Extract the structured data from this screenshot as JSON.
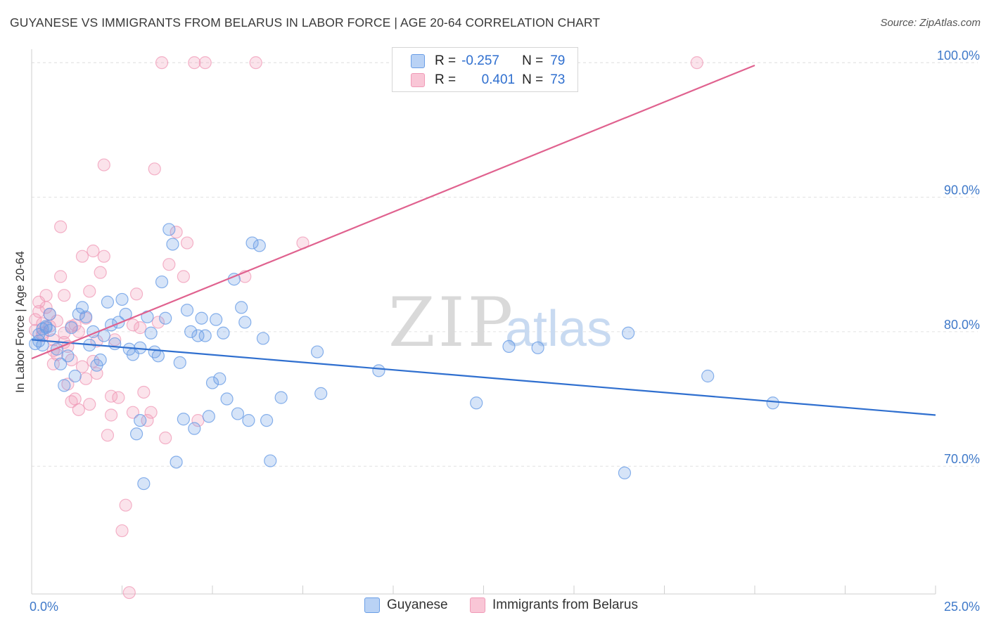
{
  "header": {
    "title": "GUYANESE VS IMMIGRANTS FROM BELARUS IN LABOR FORCE | AGE 20-64 CORRELATION CHART",
    "source": "Source: ZipAtlas.com"
  },
  "watermark": {
    "zip": "ZIP",
    "atlas": "atlas"
  },
  "legend": {
    "rows": [
      {
        "r_label": "R =",
        "r_value": "-0.257",
        "n_label": "N =",
        "n_value": "79"
      },
      {
        "r_label": "R =",
        "r_value": "0.401",
        "n_label": "N =",
        "n_value": "73"
      }
    ]
  },
  "chart_data": {
    "type": "scatter",
    "title": "GUYANESE VS IMMIGRANTS FROM BELARUS IN LABOR FORCE | AGE 20-64 CORRELATION CHART",
    "ylabel": "In Labor Force | Age 20-64",
    "xlabel": "",
    "xlim": [
      0,
      25
    ],
    "ylim": [
      60.5,
      101
    ],
    "x_tick_labels": [
      "0.0%",
      "25.0%"
    ],
    "y_ticks": [
      70,
      80,
      90,
      100
    ],
    "y_tick_labels": [
      "70.0%",
      "80.0%",
      "90.0%",
      "100.0%"
    ],
    "grid": true,
    "legend_position": "top-center",
    "colors": {
      "guyanese": "#6a9ee6",
      "belarus": "#f09ab7",
      "guyanese_line": "#2f6fcf",
      "belarus_line": "#e0628f"
    },
    "series": [
      {
        "name": "Guyanese",
        "r": -0.257,
        "n": 79,
        "trend": {
          "x": [
            0,
            25
          ],
          "y": [
            79.4,
            73.8
          ]
        },
        "points": [
          [
            0.1,
            79.1
          ],
          [
            0.2,
            79.8
          ],
          [
            0.2,
            79.3
          ],
          [
            0.3,
            80.2
          ],
          [
            0.4,
            80.4
          ],
          [
            0.5,
            80.1
          ],
          [
            0.5,
            81.3
          ],
          [
            0.7,
            78.7
          ],
          [
            0.8,
            77.6
          ],
          [
            0.9,
            76.0
          ],
          [
            1.0,
            78.2
          ],
          [
            1.1,
            80.3
          ],
          [
            1.2,
            76.7
          ],
          [
            1.3,
            81.3
          ],
          [
            1.4,
            81.8
          ],
          [
            1.5,
            81.1
          ],
          [
            1.6,
            79.0
          ],
          [
            1.7,
            80.0
          ],
          [
            1.8,
            77.5
          ],
          [
            1.9,
            77.9
          ],
          [
            2.0,
            79.7
          ],
          [
            2.1,
            82.2
          ],
          [
            2.2,
            80.5
          ],
          [
            2.3,
            79.1
          ],
          [
            2.4,
            80.7
          ],
          [
            2.5,
            82.4
          ],
          [
            2.6,
            81.3
          ],
          [
            2.7,
            78.7
          ],
          [
            2.8,
            78.3
          ],
          [
            2.9,
            72.4
          ],
          [
            3.0,
            78.8
          ],
          [
            3.0,
            73.4
          ],
          [
            3.1,
            68.7
          ],
          [
            3.2,
            81.1
          ],
          [
            3.3,
            79.9
          ],
          [
            3.4,
            78.5
          ],
          [
            3.5,
            78.2
          ],
          [
            3.6,
            83.7
          ],
          [
            3.7,
            81.0
          ],
          [
            3.8,
            87.6
          ],
          [
            3.9,
            86.5
          ],
          [
            4.0,
            70.3
          ],
          [
            4.1,
            77.7
          ],
          [
            4.2,
            73.5
          ],
          [
            4.3,
            81.6
          ],
          [
            4.4,
            80.0
          ],
          [
            4.5,
            72.8
          ],
          [
            4.6,
            79.7
          ],
          [
            4.7,
            81.0
          ],
          [
            4.8,
            79.7
          ],
          [
            4.9,
            73.7
          ],
          [
            5.0,
            76.2
          ],
          [
            5.1,
            80.9
          ],
          [
            5.2,
            76.5
          ],
          [
            5.3,
            79.9
          ],
          [
            5.4,
            75.0
          ],
          [
            5.6,
            83.9
          ],
          [
            5.7,
            73.9
          ],
          [
            5.8,
            81.8
          ],
          [
            5.9,
            80.7
          ],
          [
            6.0,
            73.4
          ],
          [
            6.1,
            86.6
          ],
          [
            6.3,
            86.4
          ],
          [
            6.4,
            79.5
          ],
          [
            6.5,
            73.4
          ],
          [
            6.6,
            70.4
          ],
          [
            6.9,
            75.1
          ],
          [
            7.9,
            78.5
          ],
          [
            8.0,
            75.4
          ],
          [
            9.6,
            77.1
          ],
          [
            12.3,
            74.7
          ],
          [
            13.2,
            78.9
          ],
          [
            14.0,
            78.8
          ],
          [
            16.4,
            69.5
          ],
          [
            16.5,
            79.9
          ],
          [
            18.7,
            76.7
          ],
          [
            20.5,
            74.7
          ],
          [
            0.3,
            79.0
          ],
          [
            0.4,
            80.3
          ]
        ]
      },
      {
        "name": "Immigrants from Belarus",
        "r": 0.401,
        "n": 73,
        "trend": {
          "x": [
            0,
            20
          ],
          "y": [
            78.0,
            99.8
          ]
        },
        "points": [
          [
            0.1,
            80.9
          ],
          [
            0.1,
            80.1
          ],
          [
            0.2,
            81.5
          ],
          [
            0.2,
            82.2
          ],
          [
            0.3,
            80.6
          ],
          [
            0.3,
            79.7
          ],
          [
            0.4,
            81.8
          ],
          [
            0.4,
            82.7
          ],
          [
            0.5,
            80.4
          ],
          [
            0.5,
            81.3
          ],
          [
            0.6,
            79.4
          ],
          [
            0.6,
            78.6
          ],
          [
            0.7,
            80.8
          ],
          [
            0.7,
            78.3
          ],
          [
            0.8,
            87.8
          ],
          [
            0.8,
            84.1
          ],
          [
            0.9,
            82.7
          ],
          [
            0.9,
            79.9
          ],
          [
            1.0,
            78.9
          ],
          [
            1.0,
            76.1
          ],
          [
            1.1,
            74.8
          ],
          [
            1.1,
            77.9
          ],
          [
            1.2,
            75.0
          ],
          [
            1.2,
            80.5
          ],
          [
            1.3,
            80.0
          ],
          [
            1.3,
            74.2
          ],
          [
            1.4,
            77.4
          ],
          [
            1.4,
            85.6
          ],
          [
            1.5,
            81.0
          ],
          [
            1.5,
            76.5
          ],
          [
            1.6,
            74.6
          ],
          [
            1.7,
            77.8
          ],
          [
            1.7,
            86.0
          ],
          [
            1.8,
            79.3
          ],
          [
            1.8,
            76.9
          ],
          [
            1.9,
            84.4
          ],
          [
            2.0,
            85.6
          ],
          [
            2.0,
            92.4
          ],
          [
            2.1,
            72.3
          ],
          [
            2.2,
            73.8
          ],
          [
            2.3,
            79.4
          ],
          [
            2.4,
            75.1
          ],
          [
            2.5,
            65.2
          ],
          [
            2.6,
            67.1
          ],
          [
            2.7,
            60.6
          ],
          [
            2.8,
            80.5
          ],
          [
            2.9,
            82.8
          ],
          [
            3.0,
            80.3
          ],
          [
            3.1,
            75.5
          ],
          [
            3.2,
            73.4
          ],
          [
            3.3,
            74.0
          ],
          [
            3.4,
            92.1
          ],
          [
            3.5,
            80.7
          ],
          [
            3.6,
            100.0
          ],
          [
            3.7,
            72.1
          ],
          [
            3.8,
            85.0
          ],
          [
            4.0,
            87.4
          ],
          [
            4.2,
            84.1
          ],
          [
            4.3,
            86.6
          ],
          [
            4.5,
            100.0
          ],
          [
            4.6,
            73.4
          ],
          [
            4.8,
            100.0
          ],
          [
            5.9,
            84.1
          ],
          [
            6.2,
            100.0
          ],
          [
            7.5,
            86.6
          ],
          [
            18.4,
            100.0
          ],
          [
            0.3,
            79.9
          ],
          [
            0.6,
            77.6
          ],
          [
            1.1,
            80.4
          ],
          [
            1.6,
            83.0
          ],
          [
            2.2,
            75.2
          ],
          [
            2.8,
            74.0
          ],
          [
            0.9,
            79.2
          ]
        ]
      }
    ]
  },
  "bottom_legend": {
    "items": [
      "Guyanese",
      "Immigrants from Belarus"
    ]
  }
}
